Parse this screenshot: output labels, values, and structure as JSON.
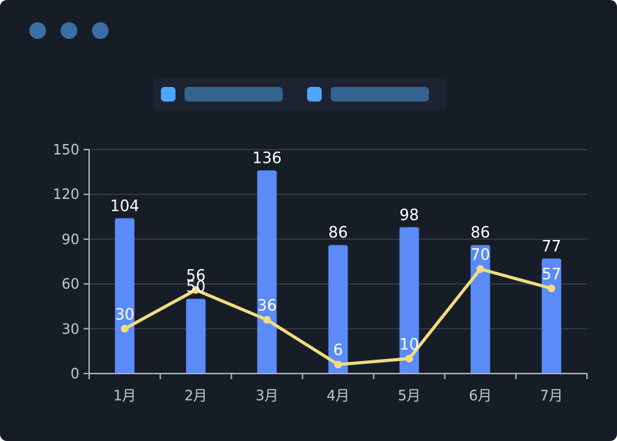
{
  "window": {
    "controls": [
      {
        "icon": "window-dot-icon"
      },
      {
        "icon": "window-dot-icon"
      },
      {
        "icon": "window-dot-icon"
      }
    ]
  },
  "legend": {
    "items": [
      {
        "swatch": "legend-swatch-bar-series",
        "label_text": ""
      },
      {
        "swatch": "legend-swatch-line-series",
        "label_text": ""
      }
    ]
  },
  "colors": {
    "background": "#171d27",
    "legend_panel": "#1d2330",
    "window_dot": "#3a6ea5",
    "legend_swatch": "#4da6ff",
    "legend_placeholder": "#35638f",
    "bar": "#5a8bf7",
    "line": "#f3dd7d",
    "grid": "#3a3f4c",
    "axis": "#a9b0ba",
    "tick_label": "#c2c8d2",
    "value_label": "#ffffff"
  },
  "chart_data": {
    "type": "bar",
    "categories": [
      "1月",
      "2月",
      "3月",
      "4月",
      "5月",
      "6月",
      "7月"
    ],
    "series": [
      {
        "name": "bar-series",
        "type": "bar",
        "values": [
          104,
          50,
          136,
          86,
          98,
          86,
          77
        ],
        "color": "#5a8bf7"
      },
      {
        "name": "line-series",
        "type": "line",
        "values": [
          30,
          56,
          36,
          6,
          10,
          70,
          57
        ],
        "color": "#f3dd7d"
      }
    ],
    "title": "",
    "xlabel": "",
    "ylabel": "",
    "ylim": [
      0,
      150
    ],
    "yticks": [
      0,
      30,
      60,
      90,
      120,
      150
    ],
    "grid": true,
    "legend_position": "top",
    "value_labels": true
  }
}
